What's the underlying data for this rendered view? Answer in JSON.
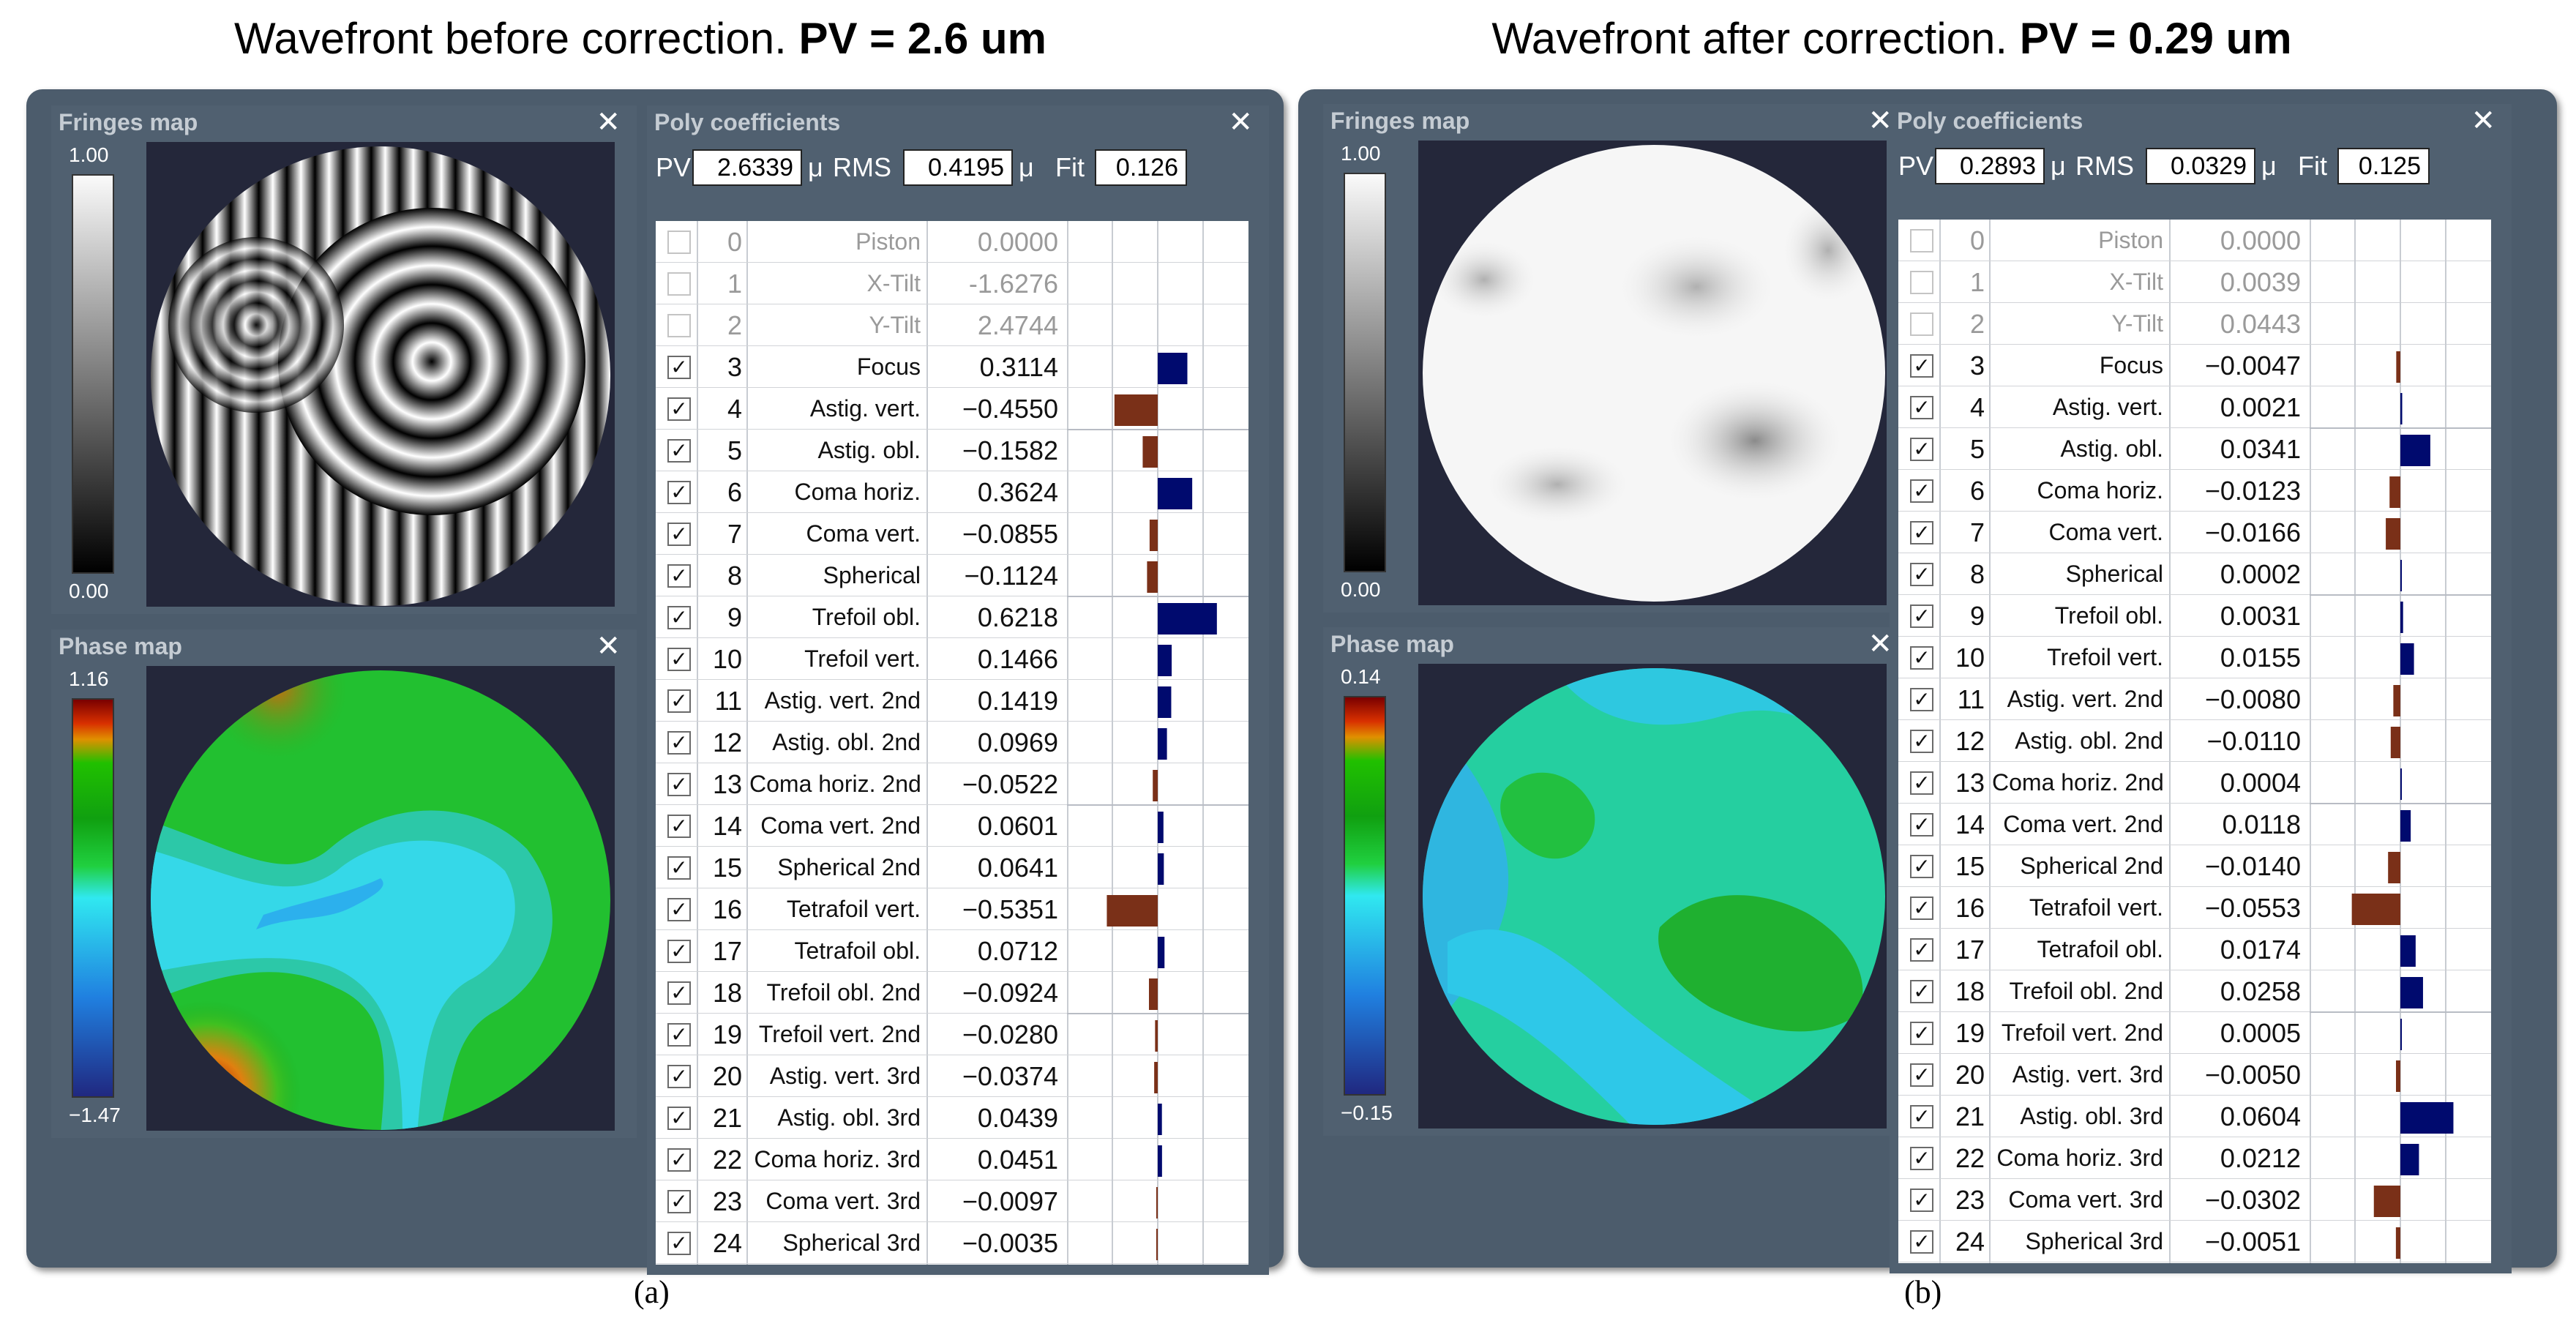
{
  "panels": [
    {
      "title_plain": "Wavefront before correction.",
      "title_bold": "PV = 2.6 um",
      "caption": "(a)",
      "fringes": {
        "title": "Fringes map",
        "max": "1.00",
        "min": "0.00"
      },
      "phase": {
        "title": "Phase map",
        "max": "1.16",
        "min": "−1.47"
      },
      "poly": {
        "title": "Poly coefficients",
        "pv_label": "PV",
        "pv": "2.6339",
        "unit": "μ",
        "rms_label": "RMS",
        "rms": "0.4195",
        "fit_label": "Fit",
        "fit": "0.126",
        "rows": [
          {
            "n": "0",
            "name": "Piston",
            "value": "0.0000",
            "on": false,
            "v": 0
          },
          {
            "n": "1",
            "name": "X-Tilt",
            "value": "-1.6276",
            "on": false,
            "v": 0
          },
          {
            "n": "2",
            "name": "Y-Tilt",
            "value": "2.4744",
            "on": false,
            "v": 0
          },
          {
            "n": "3",
            "name": "Focus",
            "value": "0.3114",
            "on": true,
            "v": 0.3114
          },
          {
            "n": "4",
            "name": "Astig. vert.",
            "value": "−0.4550",
            "on": true,
            "v": -0.455
          },
          {
            "n": "5",
            "name": "Astig. obl.",
            "value": "−0.1582",
            "on": true,
            "v": -0.1582
          },
          {
            "n": "6",
            "name": "Coma horiz.",
            "value": "0.3624",
            "on": true,
            "v": 0.3624
          },
          {
            "n": "7",
            "name": "Coma vert.",
            "value": "−0.0855",
            "on": true,
            "v": -0.0855
          },
          {
            "n": "8",
            "name": "Spherical",
            "value": "−0.1124",
            "on": true,
            "v": -0.1124
          },
          {
            "n": "9",
            "name": "Trefoil obl.",
            "value": "0.6218",
            "on": true,
            "v": 0.6218
          },
          {
            "n": "10",
            "name": "Trefoil vert.",
            "value": "0.1466",
            "on": true,
            "v": 0.1466
          },
          {
            "n": "11",
            "name": "Astig. vert. 2nd",
            "value": "0.1419",
            "on": true,
            "v": 0.1419
          },
          {
            "n": "12",
            "name": "Astig. obl. 2nd",
            "value": "0.0969",
            "on": true,
            "v": 0.0969
          },
          {
            "n": "13",
            "name": "Coma horiz. 2nd",
            "value": "−0.0522",
            "on": true,
            "v": -0.0522
          },
          {
            "n": "14",
            "name": "Coma vert. 2nd",
            "value": "0.0601",
            "on": true,
            "v": 0.0601
          },
          {
            "n": "15",
            "name": "Spherical 2nd",
            "value": "0.0641",
            "on": true,
            "v": 0.0641
          },
          {
            "n": "16",
            "name": "Tetrafoil vert.",
            "value": "−0.5351",
            "on": true,
            "v": -0.5351
          },
          {
            "n": "17",
            "name": "Tetrafoil obl.",
            "value": "0.0712",
            "on": true,
            "v": 0.0712
          },
          {
            "n": "18",
            "name": "Trefoil obl. 2nd",
            "value": "−0.0924",
            "on": true,
            "v": -0.0924
          },
          {
            "n": "19",
            "name": "Trefoil vert. 2nd",
            "value": "−0.0280",
            "on": true,
            "v": -0.028
          },
          {
            "n": "20",
            "name": "Astig. vert. 3rd",
            "value": "−0.0374",
            "on": true,
            "v": -0.0374
          },
          {
            "n": "21",
            "name": "Astig. obl. 3rd",
            "value": "0.0439",
            "on": true,
            "v": 0.0439
          },
          {
            "n": "22",
            "name": "Coma horiz. 3rd",
            "value": "0.0451",
            "on": true,
            "v": 0.0451
          },
          {
            "n": "23",
            "name": "Coma vert. 3rd",
            "value": "−0.0097",
            "on": true,
            "v": -0.0097
          },
          {
            "n": "24",
            "name": "Spherical 3rd",
            "value": "−0.0035",
            "on": true,
            "v": -0.0035
          }
        ]
      }
    },
    {
      "title_plain": "Wavefront after correction.",
      "title_bold": "PV = 0.29 um",
      "caption": "(b)",
      "fringes": {
        "title": "Fringes map",
        "max": "1.00",
        "min": "0.00"
      },
      "phase": {
        "title": "Phase map",
        "max": "0.14",
        "min": "−0.15"
      },
      "poly": {
        "title": "Poly coefficients",
        "pv_label": "PV",
        "pv": "0.2893",
        "unit": "μ",
        "rms_label": "RMS",
        "rms": "0.0329",
        "fit_label": "Fit",
        "fit": "0.125",
        "rows": [
          {
            "n": "0",
            "name": "Piston",
            "value": "0.0000",
            "on": false,
            "v": 0
          },
          {
            "n": "1",
            "name": "X-Tilt",
            "value": "0.0039",
            "on": false,
            "v": 0
          },
          {
            "n": "2",
            "name": "Y-Tilt",
            "value": "0.0443",
            "on": false,
            "v": 0
          },
          {
            "n": "3",
            "name": "Focus",
            "value": "−0.0047",
            "on": true,
            "v": -0.0047
          },
          {
            "n": "4",
            "name": "Astig. vert.",
            "value": "0.0021",
            "on": true,
            "v": 0.0021
          },
          {
            "n": "5",
            "name": "Astig. obl.",
            "value": "0.0341",
            "on": true,
            "v": 0.0341
          },
          {
            "n": "6",
            "name": "Coma horiz.",
            "value": "−0.0123",
            "on": true,
            "v": -0.0123
          },
          {
            "n": "7",
            "name": "Coma vert.",
            "value": "−0.0166",
            "on": true,
            "v": -0.0166
          },
          {
            "n": "8",
            "name": "Spherical",
            "value": "0.0002",
            "on": true,
            "v": 0.0002
          },
          {
            "n": "9",
            "name": "Trefoil obl.",
            "value": "0.0031",
            "on": true,
            "v": 0.0031
          },
          {
            "n": "10",
            "name": "Trefoil vert.",
            "value": "0.0155",
            "on": true,
            "v": 0.0155
          },
          {
            "n": "11",
            "name": "Astig. vert. 2nd",
            "value": "−0.0080",
            "on": true,
            "v": -0.008
          },
          {
            "n": "12",
            "name": "Astig. obl. 2nd",
            "value": "−0.0110",
            "on": true,
            "v": -0.011
          },
          {
            "n": "13",
            "name": "Coma horiz. 2nd",
            "value": "0.0004",
            "on": true,
            "v": 0.0004
          },
          {
            "n": "14",
            "name": "Coma vert. 2nd",
            "value": "0.0118",
            "on": true,
            "v": 0.0118
          },
          {
            "n": "15",
            "name": "Spherical 2nd",
            "value": "−0.0140",
            "on": true,
            "v": -0.014
          },
          {
            "n": "16",
            "name": "Tetrafoil vert.",
            "value": "−0.0553",
            "on": true,
            "v": -0.0553
          },
          {
            "n": "17",
            "name": "Tetrafoil obl.",
            "value": "0.0174",
            "on": true,
            "v": 0.0174
          },
          {
            "n": "18",
            "name": "Trefoil obl. 2nd",
            "value": "0.0258",
            "on": true,
            "v": 0.0258
          },
          {
            "n": "19",
            "name": "Trefoil vert. 2nd",
            "value": "0.0005",
            "on": true,
            "v": 0.0005
          },
          {
            "n": "20",
            "name": "Astig. vert. 3rd",
            "value": "−0.0050",
            "on": true,
            "v": -0.005
          },
          {
            "n": "21",
            "name": "Astig. obl. 3rd",
            "value": "0.0604",
            "on": true,
            "v": 0.0604
          },
          {
            "n": "22",
            "name": "Coma horiz. 3rd",
            "value": "0.0212",
            "on": true,
            "v": 0.0212
          },
          {
            "n": "23",
            "name": "Coma vert. 3rd",
            "value": "−0.0302",
            "on": true,
            "v": -0.0302
          },
          {
            "n": "24",
            "name": "Spherical 3rd",
            "value": "−0.0051",
            "on": true,
            "v": -0.0051
          }
        ]
      }
    }
  ],
  "colors": {
    "positive_bar": "#000a6e",
    "negative_bar": "#7a3018",
    "window": "#4c5c6c"
  }
}
